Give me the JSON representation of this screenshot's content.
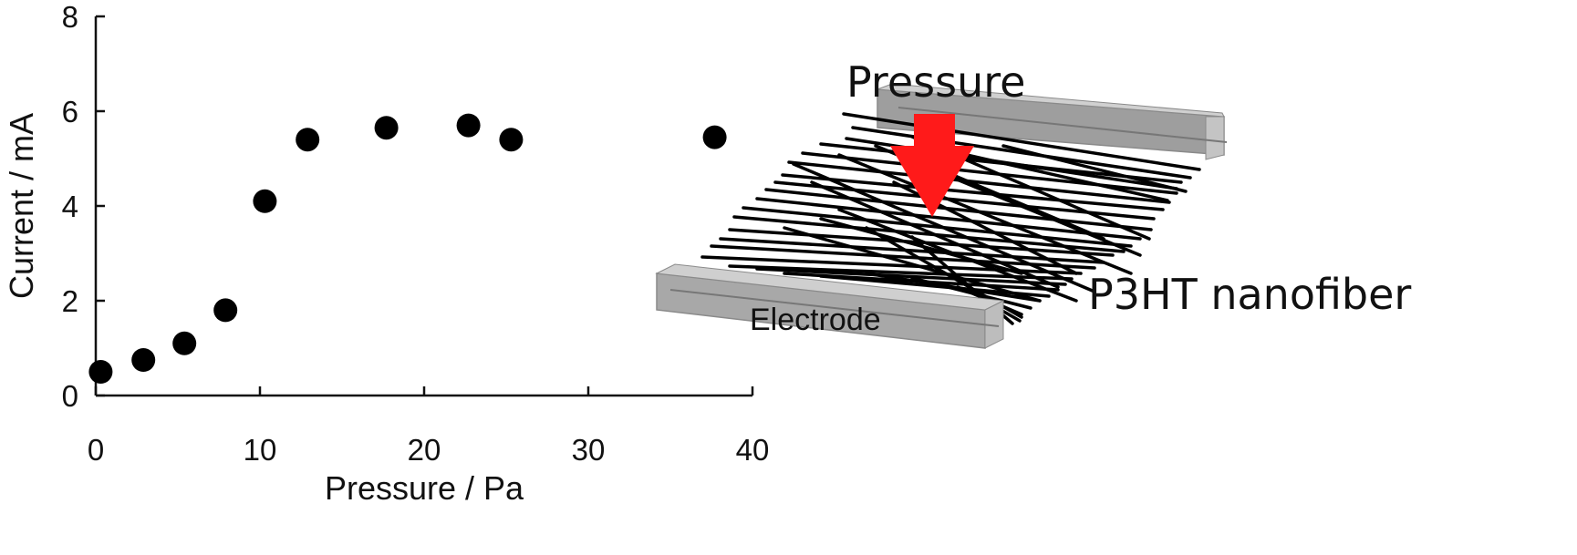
{
  "chart_data": {
    "type": "scatter",
    "xlabel": "Pressure / Pa",
    "ylabel": "Current / mA",
    "xlim": [
      0,
      40
    ],
    "ylim": [
      0,
      8
    ],
    "xticks": [
      "0",
      "10",
      "20",
      "30",
      "40"
    ],
    "yticks": [
      "0",
      "2",
      "4",
      "6",
      "8"
    ],
    "grid": false,
    "points": [
      {
        "x": 0.3,
        "y": 0.5
      },
      {
        "x": 2.9,
        "y": 0.75
      },
      {
        "x": 5.4,
        "y": 1.1
      },
      {
        "x": 7.9,
        "y": 1.8
      },
      {
        "x": 10.3,
        "y": 4.1
      },
      {
        "x": 12.9,
        "y": 5.4
      },
      {
        "x": 17.7,
        "y": 5.65
      },
      {
        "x": 22.7,
        "y": 5.7
      },
      {
        "x": 25.3,
        "y": 5.4
      },
      {
        "x": 37.7,
        "y": 5.45
      }
    ],
    "marker_color": "#000000"
  },
  "diagram": {
    "pressure_label": "Pressure",
    "fiber_label": "P3HT nanofiber",
    "electrode_label": "Electrode",
    "arrow_color": "#ff1a1a",
    "electrode_color": "#b3b3b3",
    "fiber_color": "#000000"
  }
}
